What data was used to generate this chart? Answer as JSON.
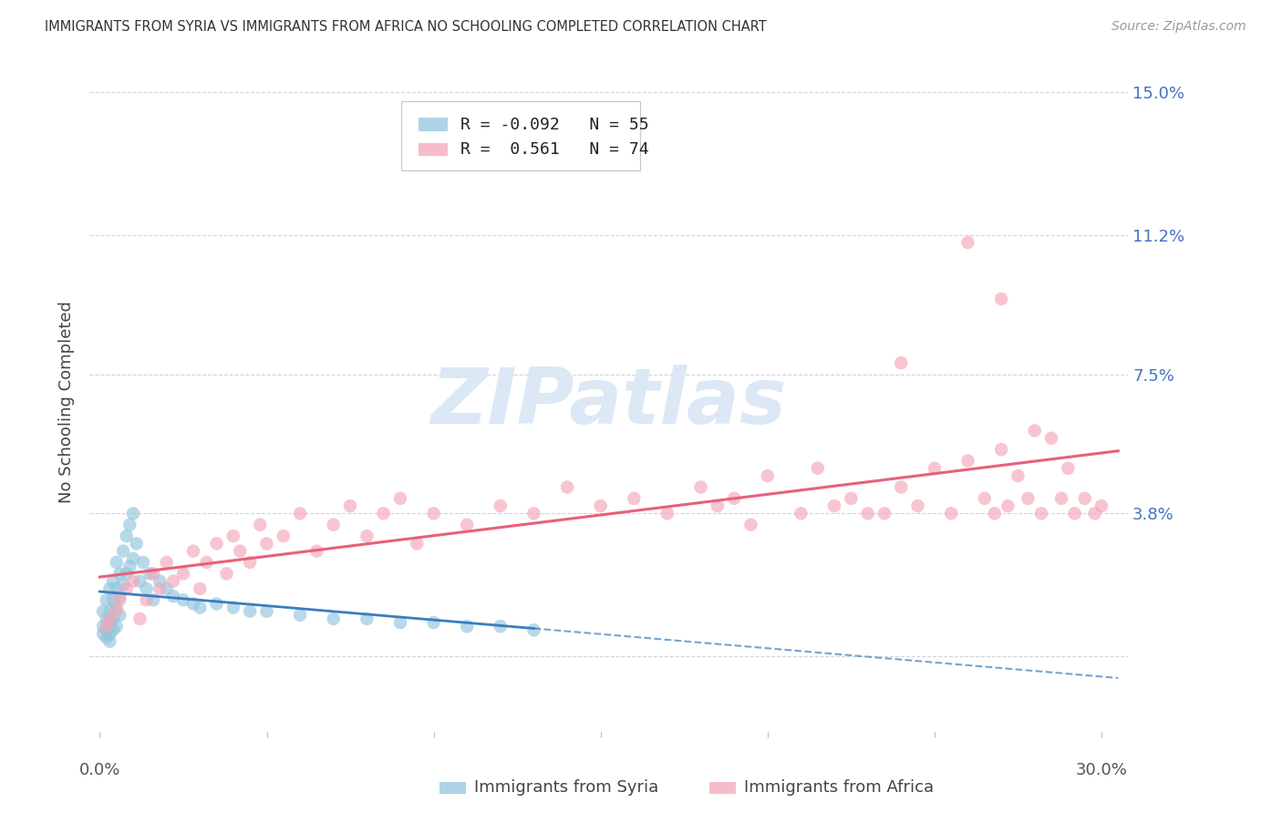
{
  "title": "IMMIGRANTS FROM SYRIA VS IMMIGRANTS FROM AFRICA NO SCHOOLING COMPLETED CORRELATION CHART",
  "source": "Source: ZipAtlas.com",
  "ylabel": "No Schooling Completed",
  "R1": -0.092,
  "N1": 55,
  "R2": 0.561,
  "N2": 74,
  "color_syria": "#92c5de",
  "color_africa": "#f4a6b8",
  "color_syria_line": "#3a7dbf",
  "color_africa_line": "#e8607a",
  "watermark_color": "#dce8f5",
  "background_color": "#ffffff",
  "grid_color": "#cccccc",
  "title_color": "#333333",
  "right_axis_color": "#4472c4",
  "legend_label1": "Immigrants from Syria",
  "legend_label2": "Immigrants from Africa",
  "y_ticks": [
    0.0,
    0.038,
    0.075,
    0.112,
    0.15
  ],
  "y_tick_labels": [
    "",
    "3.8%",
    "7.5%",
    "11.2%",
    "15.0%"
  ],
  "syria_x": [
    0.001,
    0.001,
    0.001,
    0.002,
    0.002,
    0.002,
    0.002,
    0.003,
    0.003,
    0.003,
    0.003,
    0.003,
    0.004,
    0.004,
    0.004,
    0.004,
    0.005,
    0.005,
    0.005,
    0.005,
    0.006,
    0.006,
    0.006,
    0.007,
    0.007,
    0.008,
    0.008,
    0.009,
    0.009,
    0.01,
    0.01,
    0.011,
    0.012,
    0.013,
    0.014,
    0.015,
    0.016,
    0.018,
    0.02,
    0.022,
    0.025,
    0.028,
    0.03,
    0.035,
    0.04,
    0.045,
    0.05,
    0.06,
    0.07,
    0.08,
    0.09,
    0.1,
    0.11,
    0.12,
    0.13
  ],
  "syria_y": [
    0.012,
    0.008,
    0.006,
    0.015,
    0.01,
    0.007,
    0.005,
    0.018,
    0.012,
    0.009,
    0.006,
    0.004,
    0.02,
    0.015,
    0.01,
    0.007,
    0.025,
    0.018,
    0.013,
    0.008,
    0.022,
    0.016,
    0.011,
    0.028,
    0.019,
    0.032,
    0.022,
    0.035,
    0.024,
    0.038,
    0.026,
    0.03,
    0.02,
    0.025,
    0.018,
    0.022,
    0.015,
    0.02,
    0.018,
    0.016,
    0.015,
    0.014,
    0.013,
    0.014,
    0.013,
    0.012,
    0.012,
    0.011,
    0.01,
    0.01,
    0.009,
    0.009,
    0.008,
    0.008,
    0.007
  ],
  "africa_x": [
    0.002,
    0.003,
    0.005,
    0.006,
    0.008,
    0.01,
    0.012,
    0.014,
    0.016,
    0.018,
    0.02,
    0.022,
    0.025,
    0.028,
    0.03,
    0.032,
    0.035,
    0.038,
    0.04,
    0.042,
    0.045,
    0.048,
    0.05,
    0.055,
    0.06,
    0.065,
    0.07,
    0.075,
    0.08,
    0.085,
    0.09,
    0.095,
    0.1,
    0.11,
    0.12,
    0.13,
    0.14,
    0.15,
    0.16,
    0.17,
    0.18,
    0.185,
    0.19,
    0.195,
    0.2,
    0.21,
    0.215,
    0.22,
    0.225,
    0.23,
    0.24,
    0.245,
    0.25,
    0.255,
    0.26,
    0.265,
    0.268,
    0.27,
    0.272,
    0.275,
    0.278,
    0.28,
    0.282,
    0.285,
    0.288,
    0.29,
    0.292,
    0.295,
    0.298,
    0.3,
    0.26,
    0.27,
    0.24,
    0.235
  ],
  "africa_y": [
    0.008,
    0.01,
    0.012,
    0.015,
    0.018,
    0.02,
    0.01,
    0.015,
    0.022,
    0.018,
    0.025,
    0.02,
    0.022,
    0.028,
    0.018,
    0.025,
    0.03,
    0.022,
    0.032,
    0.028,
    0.025,
    0.035,
    0.03,
    0.032,
    0.038,
    0.028,
    0.035,
    0.04,
    0.032,
    0.038,
    0.042,
    0.03,
    0.038,
    0.035,
    0.04,
    0.038,
    0.045,
    0.04,
    0.042,
    0.038,
    0.045,
    0.04,
    0.042,
    0.035,
    0.048,
    0.038,
    0.05,
    0.04,
    0.042,
    0.038,
    0.045,
    0.04,
    0.05,
    0.038,
    0.052,
    0.042,
    0.038,
    0.055,
    0.04,
    0.048,
    0.042,
    0.06,
    0.038,
    0.058,
    0.042,
    0.05,
    0.038,
    0.042,
    0.038,
    0.04,
    0.11,
    0.095,
    0.078,
    0.038
  ]
}
